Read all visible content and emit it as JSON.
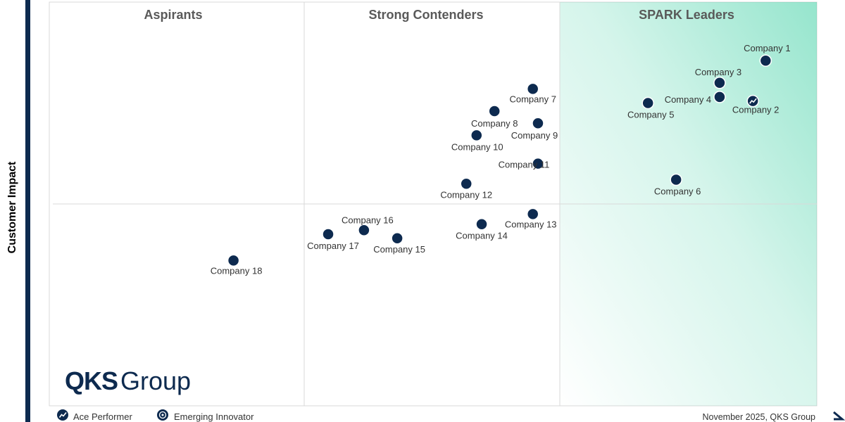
{
  "chart_data": {
    "type": "scatter",
    "title": "",
    "ylabel": "Customer Impact",
    "xlabel": "",
    "xlim": [
      0,
      3
    ],
    "ylim": [
      0,
      2
    ],
    "quadrants": [
      "Aspirants",
      "Strong Contenders",
      "SPARK Leaders"
    ],
    "points": [
      {
        "label": "Company 1",
        "x": 2.8,
        "y": 1.71,
        "marker": "dot"
      },
      {
        "label": "Company 2",
        "x": 2.75,
        "y": 1.51,
        "marker": "ace"
      },
      {
        "label": "Company 3",
        "x": 2.62,
        "y": 1.6,
        "marker": "dot"
      },
      {
        "label": "Company 4",
        "x": 2.62,
        "y": 1.53,
        "marker": "dot"
      },
      {
        "label": "Company 5",
        "x": 2.34,
        "y": 1.5,
        "marker": "dot"
      },
      {
        "label": "Company 6",
        "x": 2.45,
        "y": 1.12,
        "marker": "dot"
      },
      {
        "label": "Company 7",
        "x": 1.89,
        "y": 1.57,
        "marker": "dot"
      },
      {
        "label": "Company 8",
        "x": 1.74,
        "y": 1.46,
        "marker": "dot"
      },
      {
        "label": "Company 9",
        "x": 1.91,
        "y": 1.4,
        "marker": "dot"
      },
      {
        "label": "Company 10",
        "x": 1.67,
        "y": 1.34,
        "marker": "dot"
      },
      {
        "label": "Company 11",
        "x": 1.91,
        "y": 1.2,
        "marker": "dot"
      },
      {
        "label": "Company 12",
        "x": 1.63,
        "y": 1.1,
        "marker": "dot"
      },
      {
        "label": "Company 13",
        "x": 1.89,
        "y": 0.95,
        "marker": "dot"
      },
      {
        "label": "Company 14",
        "x": 1.69,
        "y": 0.9,
        "marker": "dot"
      },
      {
        "label": "Company 15",
        "x": 1.36,
        "y": 0.83,
        "marker": "dot"
      },
      {
        "label": "Company 16",
        "x": 1.23,
        "y": 0.87,
        "marker": "dot"
      },
      {
        "label": "Company 17",
        "x": 1.09,
        "y": 0.85,
        "marker": "dot"
      },
      {
        "label": "Company 18",
        "x": 0.72,
        "y": 0.72,
        "marker": "dot"
      }
    ],
    "legend": [
      {
        "marker": "ace",
        "label": "Ace Performer"
      },
      {
        "marker": "emerging",
        "label": "Emerging Innovator"
      }
    ],
    "footer": "November 2025, QKS Group",
    "brand": {
      "mark": "QKS",
      "name": "Group"
    },
    "colors": {
      "dot": "#0d2a4f",
      "grid": "#d9d9d9",
      "accent": "#3fd0a4",
      "axis": "#0d2a4f"
    }
  }
}
